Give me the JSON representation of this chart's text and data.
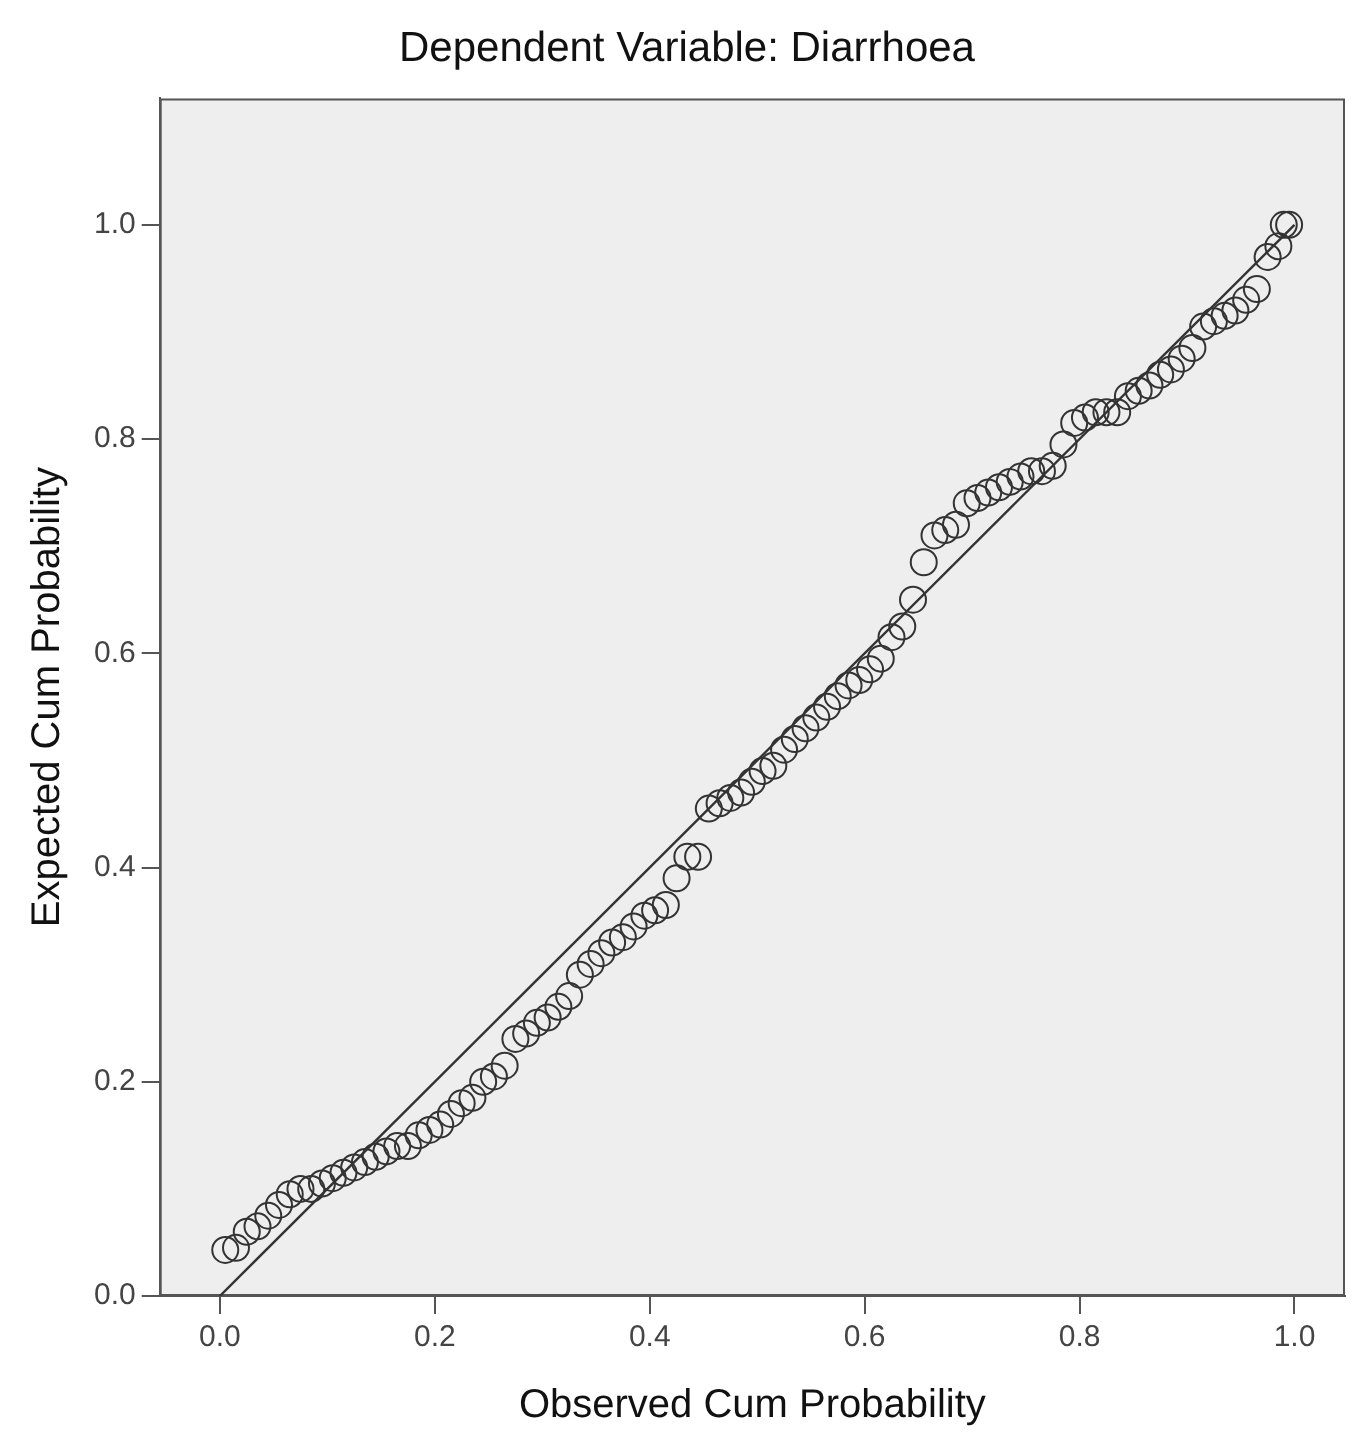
{
  "chart_data": {
    "type": "scatter",
    "title": "Dependent Variable: Diarrhoea",
    "xlabel": "Observed Cum Probability",
    "ylabel": "Expected Cum Probability",
    "xlim": [
      -0.056,
      1.047
    ],
    "ylim": [
      0,
      1.118
    ],
    "xticks": [
      {
        "value": 0,
        "label": "0.0"
      },
      {
        "value": 0.2,
        "label": "0.2"
      },
      {
        "value": 0.4,
        "label": "0.4"
      },
      {
        "value": 0.6,
        "label": "0.6"
      },
      {
        "value": 0.8,
        "label": "0.8"
      },
      {
        "value": 1,
        "label": "1.0"
      }
    ],
    "yticks": [
      {
        "value": 0,
        "label": "0.0"
      },
      {
        "value": 0.2,
        "label": "0.2"
      },
      {
        "value": 0.4,
        "label": "0.4"
      },
      {
        "value": 0.6,
        "label": "0.6"
      },
      {
        "value": 0.8,
        "label": "0.8"
      },
      {
        "value": 1,
        "label": "1.0"
      }
    ],
    "grid": false,
    "legend": false,
    "marker": "circle",
    "series": [
      {
        "color": "#333333",
        "x": [
          0.005,
          0.015,
          0.025,
          0.035,
          0.045,
          0.055,
          0.065,
          0.075,
          0.085,
          0.095,
          0.105,
          0.115,
          0.125,
          0.135,
          0.145,
          0.155,
          0.165,
          0.175,
          0.185,
          0.195,
          0.205,
          0.215,
          0.225,
          0.235,
          0.245,
          0.255,
          0.265,
          0.275,
          0.285,
          0.295,
          0.305,
          0.315,
          0.325,
          0.335,
          0.345,
          0.355,
          0.365,
          0.375,
          0.385,
          0.395,
          0.405,
          0.415,
          0.425,
          0.435,
          0.445,
          0.455,
          0.465,
          0.475,
          0.485,
          0.495,
          0.505,
          0.515,
          0.525,
          0.535,
          0.545,
          0.555,
          0.565,
          0.575,
          0.585,
          0.595,
          0.605,
          0.615,
          0.625,
          0.635,
          0.645,
          0.655,
          0.665,
          0.675,
          0.685,
          0.695,
          0.705,
          0.715,
          0.725,
          0.735,
          0.745,
          0.755,
          0.765,
          0.775,
          0.785,
          0.795,
          0.805,
          0.815,
          0.825,
          0.835,
          0.845,
          0.855,
          0.865,
          0.875,
          0.885,
          0.895,
          0.905,
          0.915,
          0.925,
          0.935,
          0.945,
          0.955,
          0.965,
          0.975,
          0.985,
          0.99,
          0.995
        ],
        "values": [
          0.043,
          0.045,
          0.06,
          0.065,
          0.075,
          0.085,
          0.095,
          0.1,
          0.1,
          0.105,
          0.11,
          0.115,
          0.12,
          0.125,
          0.13,
          0.135,
          0.14,
          0.14,
          0.15,
          0.155,
          0.16,
          0.17,
          0.18,
          0.185,
          0.2,
          0.205,
          0.215,
          0.24,
          0.245,
          0.255,
          0.26,
          0.27,
          0.28,
          0.3,
          0.31,
          0.32,
          0.33,
          0.335,
          0.345,
          0.355,
          0.36,
          0.365,
          0.39,
          0.41,
          0.41,
          0.455,
          0.46,
          0.465,
          0.47,
          0.48,
          0.49,
          0.495,
          0.51,
          0.52,
          0.53,
          0.54,
          0.55,
          0.56,
          0.57,
          0.575,
          0.585,
          0.595,
          0.615,
          0.625,
          0.65,
          0.685,
          0.71,
          0.715,
          0.72,
          0.74,
          0.745,
          0.75,
          0.755,
          0.76,
          0.765,
          0.77,
          0.77,
          0.775,
          0.795,
          0.815,
          0.82,
          0.825,
          0.825,
          0.825,
          0.84,
          0.845,
          0.85,
          0.86,
          0.865,
          0.875,
          0.885,
          0.905,
          0.91,
          0.915,
          0.92,
          0.93,
          0.94,
          0.97,
          0.98,
          1.0,
          1.0
        ]
      },
      {
        "type": "line",
        "color": "#333333",
        "marker": "none",
        "x": [
          0,
          1
        ],
        "values": [
          0,
          1
        ]
      }
    ]
  }
}
